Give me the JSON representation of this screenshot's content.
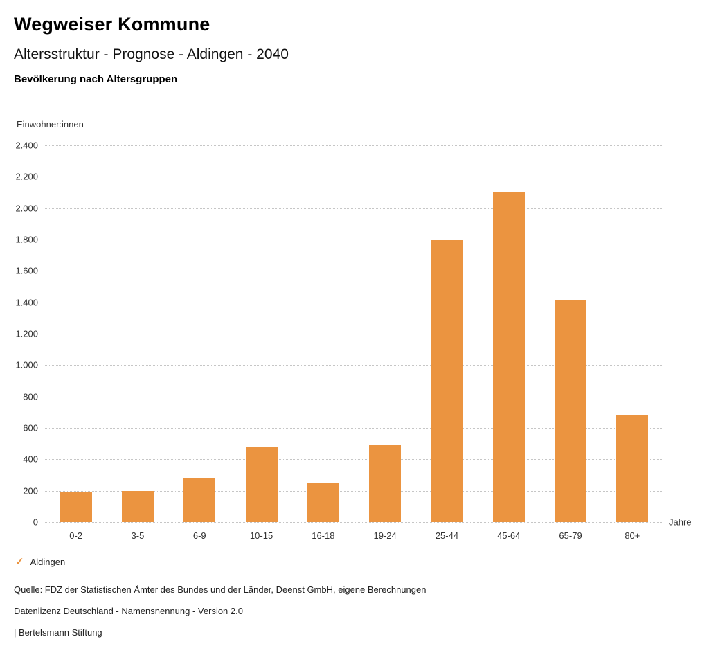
{
  "header": {
    "title": "Wegweiser Kommune",
    "subtitle": "Altersstruktur - Prognose - Aldingen - 2040",
    "heading": "Bevölkerung nach Altersgruppen"
  },
  "chart_data": {
    "type": "bar",
    "title": "Bevölkerung nach Altersgruppen",
    "categories": [
      "0-2",
      "3-5",
      "6-9",
      "10-15",
      "16-18",
      "19-24",
      "25-44",
      "45-64",
      "65-79",
      "80+"
    ],
    "series": [
      {
        "name": "Aldingen",
        "values": [
          190,
          200,
          280,
          480,
          250,
          490,
          1800,
          2100,
          1410,
          680
        ]
      }
    ],
    "xlabel": "Jahre",
    "ylabel": "Einwohner:innen",
    "ylim": [
      0,
      2400
    ],
    "y_ticks": [
      0,
      200,
      400,
      600,
      800,
      1000,
      1200,
      1400,
      1600,
      1800,
      2000,
      2200,
      2400
    ],
    "y_tick_labels": [
      "0",
      "200",
      "400",
      "600",
      "800",
      "1.000",
      "1.200",
      "1.400",
      "1.600",
      "1.800",
      "2.000",
      "2.200",
      "2.400"
    ],
    "grid": "horizontal-dotted",
    "legend_position": "bottom-left",
    "bar_color": "#EB9440"
  },
  "legend": {
    "check_icon": "checkmark",
    "label": "Aldingen",
    "color": "#EB9440"
  },
  "footer": {
    "source": "Quelle: FDZ der Statistischen Ämter des Bundes und der Länder, Deenst GmbH, eigene Berechnungen",
    "license": "Datenlizenz Deutschland - Namensnennung - Version 2.0",
    "publisher": "| Bertelsmann Stiftung"
  }
}
